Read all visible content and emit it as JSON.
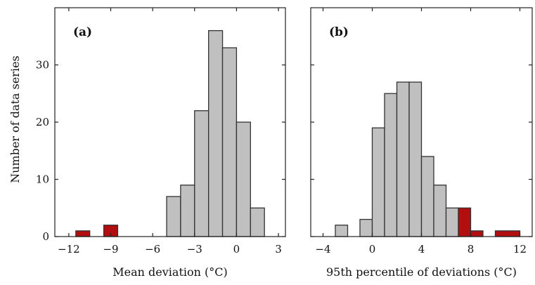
{
  "ylabel": "Number of data series",
  "colors": {
    "normal": "#c0c0c0",
    "highlight": "#b20e10",
    "edge": "#333333"
  },
  "chart_data": [
    {
      "type": "bar",
      "panel_label": "(a)",
      "xlabel": "Mean deviation (°C)",
      "ylabel": "Number of data series",
      "xlim": [
        -13,
        3.5
      ],
      "ylim": [
        0,
        40
      ],
      "xticks": [
        -12,
        -9,
        -6,
        -3,
        0,
        3
      ],
      "xtick_labels": [
        "−12",
        "−9",
        "−6",
        "−3",
        "0",
        "3"
      ],
      "yticks": [
        0,
        10,
        20,
        30
      ],
      "ytick_labels": [
        "0",
        "10",
        "20",
        "30"
      ],
      "grid": false,
      "bins": [
        {
          "x0": -11.5,
          "x1": -10.5,
          "value": 1,
          "highlight": true
        },
        {
          "x0": -9.5,
          "x1": -8.5,
          "value": 2,
          "highlight": true
        },
        {
          "x0": -5,
          "x1": -4,
          "value": 7,
          "highlight": false
        },
        {
          "x0": -4,
          "x1": -3,
          "value": 9,
          "highlight": false
        },
        {
          "x0": -3,
          "x1": -2,
          "value": 22,
          "highlight": false
        },
        {
          "x0": -2,
          "x1": -1,
          "value": 36,
          "highlight": false
        },
        {
          "x0": -1,
          "x1": 0,
          "value": 33,
          "highlight": false
        },
        {
          "x0": 0,
          "x1": 1,
          "value": 20,
          "highlight": false
        },
        {
          "x0": 1,
          "x1": 2,
          "value": 5,
          "highlight": false
        }
      ]
    },
    {
      "type": "bar",
      "panel_label": "(b)",
      "xlabel": "95th percentile of deviations (°C)",
      "ylabel": "",
      "xlim": [
        -5,
        13
      ],
      "ylim": [
        0,
        40
      ],
      "xticks": [
        -4,
        0,
        4,
        8,
        12
      ],
      "xtick_labels": [
        "−4",
        "0",
        "4",
        "8",
        "12"
      ],
      "yticks": [
        0,
        10,
        20,
        30
      ],
      "ytick_labels": [],
      "grid": false,
      "bins": [
        {
          "x0": -3,
          "x1": -2,
          "value": 2,
          "highlight": false
        },
        {
          "x0": -1,
          "x1": 0,
          "value": 3,
          "highlight": false
        },
        {
          "x0": 0,
          "x1": 1,
          "value": 19,
          "highlight": false
        },
        {
          "x0": 1,
          "x1": 2,
          "value": 25,
          "highlight": false
        },
        {
          "x0": 2,
          "x1": 3,
          "value": 27,
          "highlight": false
        },
        {
          "x0": 3,
          "x1": 4,
          "value": 27,
          "highlight": false
        },
        {
          "x0": 4,
          "x1": 5,
          "value": 14,
          "highlight": false
        },
        {
          "x0": 5,
          "x1": 6,
          "value": 9,
          "highlight": false
        },
        {
          "x0": 6,
          "x1": 7,
          "value": 5,
          "highlight": false
        },
        {
          "x0": 7,
          "x1": 8,
          "value": 5,
          "highlight": true
        },
        {
          "x0": 8,
          "x1": 9,
          "value": 1,
          "highlight": true
        },
        {
          "x0": 10,
          "x1": 12,
          "value": 1,
          "highlight": true
        }
      ]
    }
  ]
}
